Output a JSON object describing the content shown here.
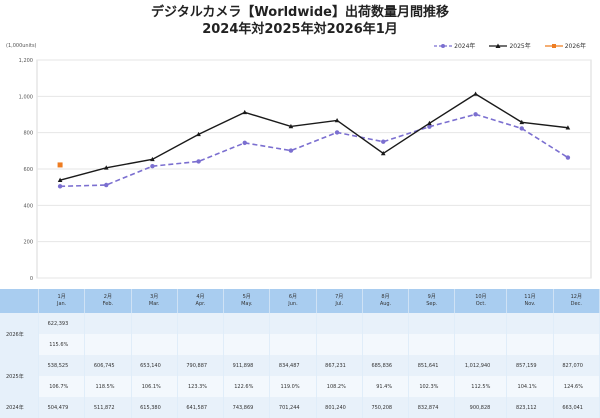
{
  "title": {
    "line1": "デジタルカメラ【Worldwide】出荷数量月間推移",
    "line2": "2024年対2025年対2026年1月"
  },
  "chart_data": {
    "type": "line",
    "title": "デジタルカメラ【Worldwide】出荷数量月間推移 2024年対2025年対2026年1月",
    "ylabel": "(1,000units)",
    "xlabel": "",
    "ylim": [
      0,
      1200
    ],
    "yticks": [
      "0",
      "200",
      "400",
      "600",
      "800",
      "1,000",
      "1,200"
    ],
    "grid": true,
    "legend_position": "top-right",
    "categories": [
      "Jan.",
      "Feb.",
      "Mar.",
      "Apr.",
      "May.",
      "Jun.",
      "Jul.",
      "Aug.",
      "Sep.",
      "Oct.",
      "Nov.",
      "Dec."
    ],
    "series": [
      {
        "name": "2024年",
        "color": "#7b6fd0",
        "style": "dashed",
        "marker": "circle",
        "values": [
          504.479,
          511.872,
          615.38,
          641.587,
          743.869,
          701.244,
          801.24,
          750.208,
          832.874,
          900.828,
          823.112,
          663.041
        ]
      },
      {
        "name": "2025年",
        "color": "#1a1a1a",
        "style": "solid",
        "marker": "triangle",
        "values": [
          538.525,
          606.745,
          653.14,
          790.887,
          911.898,
          834.487,
          867.231,
          685.836,
          851.641,
          1012.94,
          857.159,
          827.07
        ]
      },
      {
        "name": "2026年",
        "color": "#ee7d22",
        "style": "solid",
        "marker": "square",
        "values": [
          622.393,
          null,
          null,
          null,
          null,
          null,
          null,
          null,
          null,
          null,
          null,
          null
        ]
      }
    ]
  },
  "legend": [
    {
      "label": "2024年",
      "color": "#7b6fd0"
    },
    {
      "label": "2025年",
      "color": "#1a1a1a"
    },
    {
      "label": "2026年",
      "color": "#ee7d22"
    }
  ],
  "table": {
    "headers": [
      {
        "jp": "",
        "en": ""
      },
      {
        "jp": "1月",
        "en": "Jan."
      },
      {
        "jp": "2月",
        "en": "Feb."
      },
      {
        "jp": "3月",
        "en": "Mar."
      },
      {
        "jp": "4月",
        "en": "Apr."
      },
      {
        "jp": "5月",
        "en": "May."
      },
      {
        "jp": "6月",
        "en": "Jun."
      },
      {
        "jp": "7月",
        "en": "Jul."
      },
      {
        "jp": "8月",
        "en": "Aug."
      },
      {
        "jp": "9月",
        "en": "Sep."
      },
      {
        "jp": "10月",
        "en": "Oct."
      },
      {
        "jp": "11月",
        "en": "Nov."
      },
      {
        "jp": "12月",
        "en": "Dec."
      }
    ],
    "rows": [
      {
        "year": "2026年",
        "cells": [
          "622,393",
          "",
          "",
          "",
          "",
          "",
          "",
          "",
          "",
          "",
          "",
          ""
        ]
      },
      {
        "year": "",
        "cells": [
          "115.6%",
          "",
          "",
          "",
          "",
          "",
          "",
          "",
          "",
          "",
          "",
          ""
        ]
      },
      {
        "year": "2025年",
        "cells": [
          "538,525",
          "606,745",
          "653,140",
          "790,887",
          "911,898",
          "834,487",
          "867,231",
          "685,836",
          "851,641",
          "1,012,940",
          "857,159",
          "827,070"
        ]
      },
      {
        "year": "",
        "cells": [
          "106.7%",
          "118.5%",
          "106.1%",
          "123.3%",
          "122.6%",
          "119.0%",
          "108.2%",
          "91.4%",
          "102.3%",
          "112.5%",
          "104.1%",
          "124.6%"
        ]
      },
      {
        "year": "2024年",
        "cells": [
          "504,479",
          "511,872",
          "615,380",
          "641,587",
          "743,869",
          "701,244",
          "801,240",
          "750,208",
          "832,874",
          "900,828",
          "823,112",
          "663,041"
        ]
      }
    ]
  }
}
